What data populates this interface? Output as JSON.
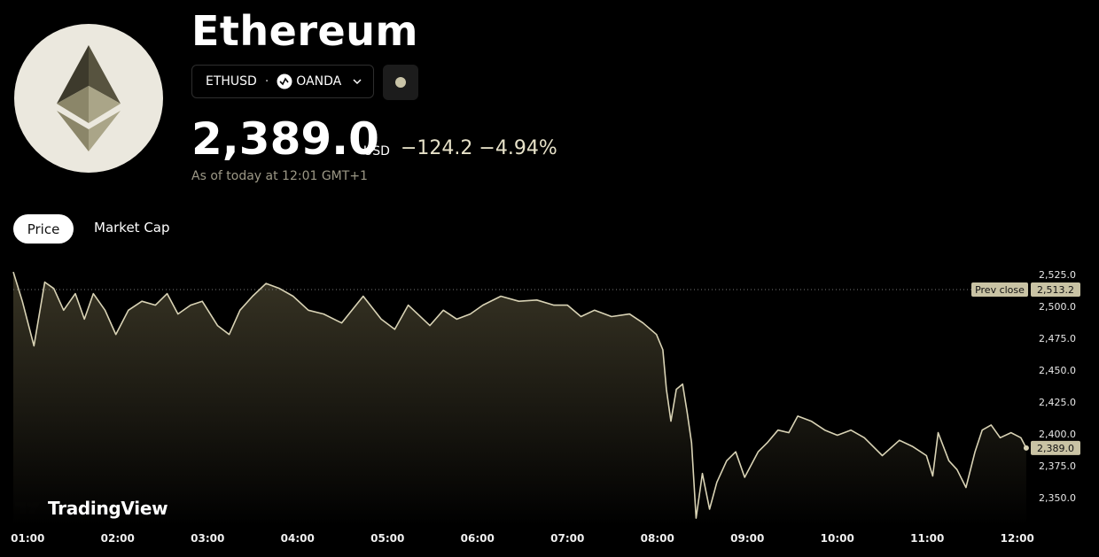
{
  "header": {
    "title": "Ethereum",
    "symbol": "ETHUSD",
    "exchange": "OANDA",
    "price": "2,389.0",
    "currency": "USD",
    "change": "−124.2",
    "change_percent": "−4.94%",
    "as_of": "As of today at 12:01 GMT+1"
  },
  "tabs": [
    "Price",
    "Market Cap"
  ],
  "brand": "TradingView",
  "chart_data": {
    "type": "line",
    "color": "#d9d3b5",
    "x": [
      0.84,
      0.94,
      1.07,
      1.19,
      1.29,
      1.4,
      1.53,
      1.63,
      1.73,
      1.86,
      1.98,
      2.12,
      2.27,
      2.42,
      2.55,
      2.67,
      2.81,
      2.94,
      3.11,
      3.24,
      3.36,
      3.5,
      3.65,
      3.8,
      3.95,
      4.12,
      4.29,
      4.49,
      4.73,
      4.93,
      5.08,
      5.23,
      5.47,
      5.62,
      5.77,
      5.92,
      6.06,
      6.26,
      6.46,
      6.66,
      6.85,
      7.0,
      7.15,
      7.3,
      7.49,
      7.69,
      7.84,
      7.99,
      8.06,
      8.1,
      8.15,
      8.21,
      8.28,
      8.33,
      8.38,
      8.43,
      8.5,
      8.58,
      8.66,
      8.77,
      8.87,
      8.97,
      9.12,
      9.22,
      9.34,
      9.46,
      9.56,
      9.71,
      9.86,
      10.0,
      10.15,
      10.3,
      10.5,
      10.69,
      10.84,
      10.99,
      11.06,
      11.12,
      11.24,
      11.33,
      11.43,
      11.53,
      11.61,
      11.71,
      11.81,
      11.93,
      12.04,
      12.1
    ],
    "values": [
      2527,
      2504,
      2469,
      2519,
      2514,
      2497,
      2510,
      2490,
      2510,
      2497,
      2478,
      2497,
      2504,
      2501,
      2510,
      2494,
      2501,
      2504,
      2485,
      2478,
      2497,
      2508,
      2518,
      2514,
      2508,
      2497,
      2494,
      2487,
      2508,
      2490,
      2482,
      2501,
      2485,
      2497,
      2490,
      2494,
      2501,
      2508,
      2504,
      2505,
      2501,
      2501,
      2492,
      2497,
      2492,
      2494,
      2487,
      2478,
      2466,
      2435,
      2410,
      2435,
      2439,
      2417,
      2393,
      2334,
      2369,
      2341,
      2362,
      2379,
      2386,
      2366,
      2386,
      2393,
      2403,
      2401,
      2414,
      2410,
      2403,
      2399,
      2403,
      2397,
      2383,
      2395,
      2390,
      2383,
      2367,
      2401,
      2379,
      2372,
      2358,
      2386,
      2403,
      2407,
      2397,
      2401,
      2397,
      2389.0
    ],
    "xlim": [
      0.84,
      12.15
    ],
    "ylim": [
      2328,
      2535
    ],
    "xticks": [
      {
        "value": 1,
        "label": "01:00"
      },
      {
        "value": 2,
        "label": "02:00"
      },
      {
        "value": 3,
        "label": "03:00"
      },
      {
        "value": 4,
        "label": "04:00"
      },
      {
        "value": 5,
        "label": "05:00"
      },
      {
        "value": 6,
        "label": "06:00"
      },
      {
        "value": 7,
        "label": "07:00"
      },
      {
        "value": 8,
        "label": "08:00"
      },
      {
        "value": 9,
        "label": "09:00"
      },
      {
        "value": 10,
        "label": "10:00"
      },
      {
        "value": 11,
        "label": "11:00"
      },
      {
        "value": 12,
        "label": "12:00"
      }
    ],
    "yticks": [
      {
        "value": 2350,
        "label": "2,350.0"
      },
      {
        "value": 2375,
        "label": "2,375.0"
      },
      {
        "value": 2400,
        "label": "2,400.0"
      },
      {
        "value": 2425,
        "label": "2,425.0"
      },
      {
        "value": 2450,
        "label": "2,450.0"
      },
      {
        "value": 2475,
        "label": "2,475.0"
      },
      {
        "value": 2500,
        "label": "2,500.0"
      },
      {
        "value": 2525,
        "label": "2,525.0"
      }
    ],
    "prev_close_label": "Prev close",
    "prev_close": {
      "value": 2513.2,
      "label": "2,513.2"
    },
    "last_price": {
      "value": 2389.0,
      "label": "2,389.0"
    }
  }
}
